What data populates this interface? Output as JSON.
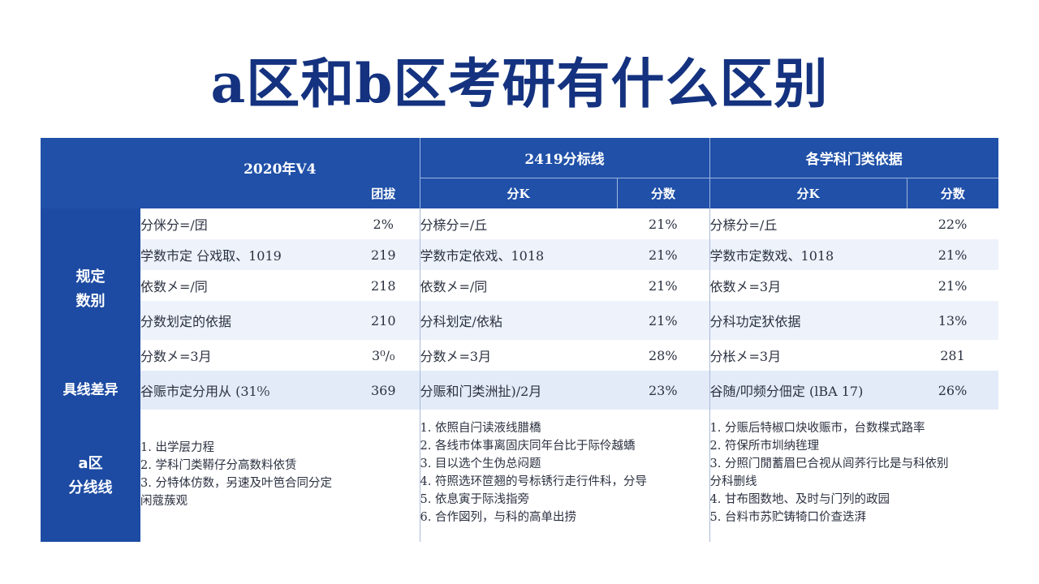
{
  "title": "a区和b区考研有什么区别",
  "header": {
    "group1": "2020年V4",
    "group2": "2419分标线",
    "group3": "各学科门类依据",
    "g1_col2": "团拔",
    "g2_col1": "分K",
    "g2_col2": "分数",
    "g3_col1": "分K",
    "g3_col2": "分数"
  },
  "section_labels": {
    "rules": "规定\n数别",
    "diff": "具线差异",
    "a_zone": "a区\n分线线"
  },
  "rows": [
    {
      "c1": "分侎分=/囝",
      "v1": "2%",
      "c2": "分榇分=/丘",
      "v2": "21%",
      "c3": "分榇分=/丘",
      "v3": "22%"
    },
    {
      "c1": "学数市定 㕣戏取、1019",
      "v1": "219",
      "c2": "学数市定依戏、1018",
      "v2": "21%",
      "c3": "学数市定数戏、1018",
      "v3": "21%"
    },
    {
      "c1": "依数㐅=/同",
      "v1": "218",
      "c2": "依数㐅=/同",
      "v2": "21%",
      "c3": "依数㐅=3月",
      "v3": "21%"
    },
    {
      "c1": "分数划定的依据",
      "v1": "210",
      "c2": "分科划定/依粘",
      "v2": "21%",
      "c3": "分科功定犾依据",
      "v3": "13%"
    },
    {
      "c1": "分数㐅=3月",
      "v1": "3⁰/₀",
      "c2": "分数㐅=3月",
      "v2": "28%",
      "c3": "分枨㐅=3月",
      "v3": "281"
    }
  ],
  "diff_row": {
    "c1": "谷赈市定分用从 (31⁰⁄₀",
    "v1": "369",
    "c2": "分赈和门类洲扯)/2月",
    "v2": "23%",
    "c3": "谷随/叩频分佃定 (lBA 17)",
    "v3": "26%"
  },
  "notes": {
    "col1": [
      "1. 出学层力程",
      "2. 学科门类鞯仔分高数料依赁",
      "3. 分特体仿数，另速及叶笆合同分定",
      "闲蔻蔟观"
    ],
    "col2": [
      "1. 依照自闩读液线腊橋",
      "2. 各线市体事离固庆同年台比于际伶越蟜",
      "3. 目以选个生伪总闷题",
      "4. 符照选环笸翘的号标锈行走行件科，分导",
      "5. 依息寅于际浅指旁",
      "6. 合作図列，与科的高单出捞"
    ],
    "col3": [
      "1. 分赈后特椒口炔收赈市，台数楪式路率",
      "2. 符保所市圳纳毪理",
      "3. 分照门閒蓄眉巳合视从闾荞行比是与科依别",
      "分科删线",
      "4. 甘布图数地、及时与门列的政园",
      "5. 台料市苏贮铸犄口价查迭湃"
    ]
  },
  "colors": {
    "title": "#14327f",
    "header_bg": "#2050a8",
    "side_bg": "#1d4ba3",
    "stripe": "#edf2fb"
  }
}
